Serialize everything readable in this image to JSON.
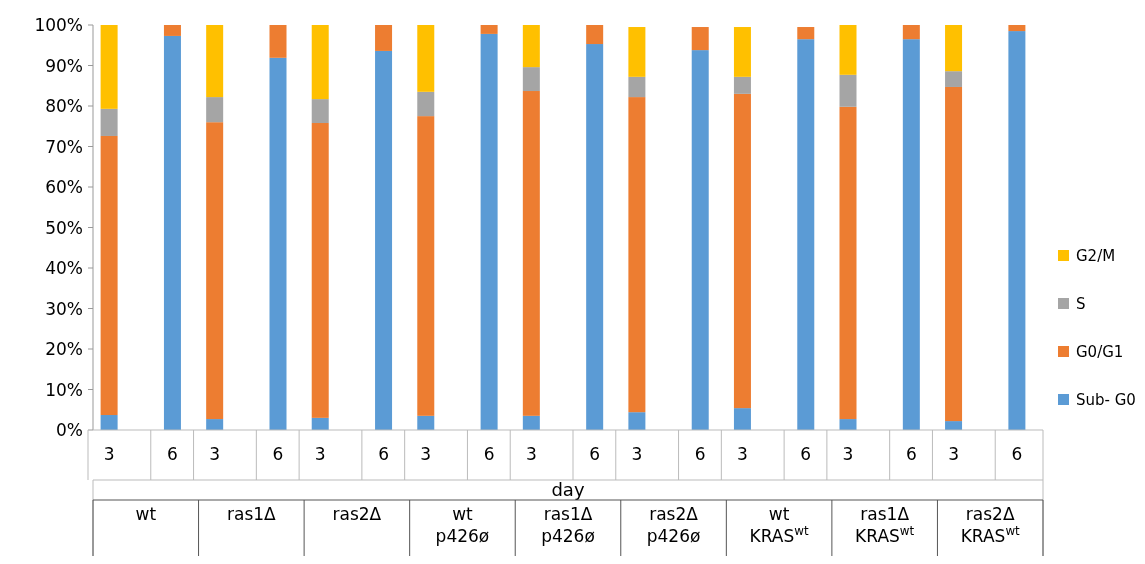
{
  "chart_data": {
    "type": "bar",
    "stacked": true,
    "xlabel": "day",
    "categories": [
      "3",
      "6",
      "3",
      "6",
      "3",
      "6",
      "3",
      "6",
      "3",
      "6",
      "3",
      "6",
      "3",
      "6",
      "3",
      "6",
      "3",
      "6"
    ],
    "annotations": [
      "wt",
      "ras1Δ",
      "ras2Δ",
      "wt\np426ø",
      "ras1Δ\np426ø",
      "ras2Δ\np426ø",
      "wt\nKRAS$^{wt}$",
      "ras1Δ\nKRAS$^{wt}$",
      "ras2Δ\nKRAS$^{wt}$"
    ],
    "series": [
      {
        "name": "Sub- G0",
        "color": "#5b9bd5",
        "values": [
          3.7,
          97.3,
          2.7,
          91.9,
          3,
          93.6,
          3.5,
          97.8,
          3.5,
          95.3,
          4.4,
          93.8,
          5.4,
          96.5,
          2.7,
          96.5,
          2.2,
          98.5
        ]
      },
      {
        "name": "G0/G1",
        "color": "#ed7d31",
        "values": [
          68.9,
          2.7,
          73.3,
          8.1,
          72.8,
          6.4,
          74,
          2.2,
          80.2,
          4.7,
          77.8,
          5.7,
          77.6,
          3,
          77.1,
          3.5,
          82.5,
          1.5
        ]
      },
      {
        "name": "S",
        "color": "#a5a5a5",
        "values": [
          6.7,
          0,
          6.2,
          0,
          5.9,
          0,
          6,
          0,
          5.9,
          0,
          5,
          0,
          4.2,
          0,
          7.9,
          0,
          3.9,
          0
        ]
      },
      {
        "name": "G2/M",
        "color": "#ffc000",
        "values": [
          20.7,
          0,
          17.8,
          0,
          18.3,
          0,
          16.5,
          0,
          10.4,
          0,
          12.3,
          0,
          12.3,
          0,
          12.3,
          0,
          11.4,
          0
        ]
      }
    ],
    "ylim": [
      0,
      100
    ],
    "yticks": [
      {
        "value": 0,
        "label": "0%"
      },
      {
        "value": 10,
        "label": "10%"
      },
      {
        "value": 20,
        "label": "20%"
      },
      {
        "value": 30,
        "label": "30%"
      },
      {
        "value": 40,
        "label": "40%"
      },
      {
        "value": 50,
        "label": "50%"
      },
      {
        "value": 60,
        "label": "60%"
      },
      {
        "value": 70,
        "label": "70%"
      },
      {
        "value": 80,
        "label": "80%"
      },
      {
        "value": 90,
        "label": "90%"
      },
      {
        "value": 100,
        "label": "100%"
      }
    ],
    "legend": "right"
  }
}
